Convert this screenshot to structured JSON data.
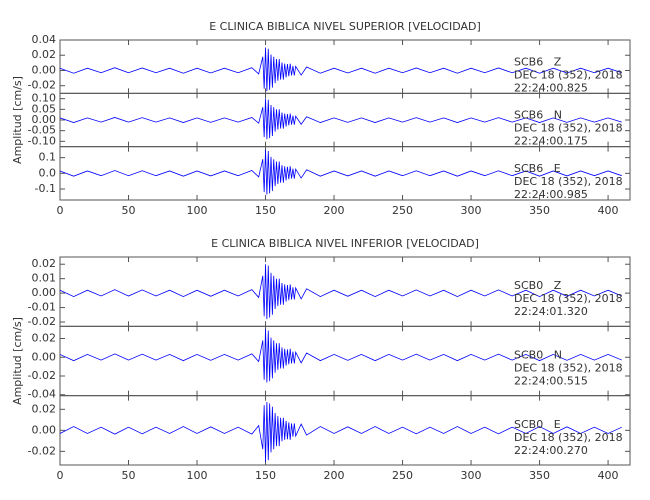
{
  "chart_data": [
    {
      "type": "line",
      "title": "E CLINICA BIBLICA NIVEL SUPERIOR [VELOCIDAD]",
      "ylabel": "Amplitud [cm/s]",
      "xlim": [
        0,
        416
      ],
      "xticks": [
        0,
        50,
        100,
        150,
        200,
        250,
        300,
        350,
        400
      ],
      "x": [
        0,
        10,
        20,
        30,
        40,
        50,
        60,
        70,
        80,
        90,
        100,
        110,
        120,
        130,
        140,
        145,
        148,
        149,
        150,
        151,
        152,
        153,
        154,
        155,
        156,
        157,
        158,
        159,
        160,
        161,
        162,
        163,
        164,
        165,
        166,
        167,
        168,
        169,
        170,
        171,
        172,
        176,
        180,
        190,
        200,
        210,
        220,
        230,
        240,
        250,
        260,
        270,
        280,
        290,
        300,
        310,
        320,
        330,
        340,
        350,
        360,
        370,
        380,
        390,
        400,
        410
      ],
      "panels": [
        {
          "ylim": [
            -0.03,
            0.04
          ],
          "yticks": [
            {
              "value": 0.04,
              "label": "0.04"
            },
            0.02,
            {
              "value": 0,
              "label": "0.00"
            },
            -0.02
          ],
          "labels": [
            "SCB6   Z",
            "DEC 18 (352), 2018",
            "22:24:00.825"
          ],
          "series": [
            {
              "color": "#0000ff",
              "values": [
                0.003,
                -0.0036,
                0.003,
                -0.003,
                0.0036,
                -0.003,
                0.0033,
                -0.003,
                0.003,
                -0.0036,
                0.003,
                -0.0033,
                0.003,
                -0.003,
                0.0036,
                -0.0045,
                0.018,
                -0.024,
                0.03,
                -0.027,
                0.0285,
                -0.0255,
                0.021,
                -0.0225,
                0.018,
                -0.0165,
                0.015,
                -0.0135,
                0.015,
                -0.012,
                0.0105,
                -0.012,
                0.009,
                -0.009,
                0.0084,
                -0.0075,
                0.009,
                -0.0066,
                0.006,
                -0.0066,
                0.0054,
                -0.006,
                0.0045,
                -0.0036,
                0.003,
                -0.0033,
                0.003,
                -0.0036,
                0.003,
                -0.003,
                0.0033,
                -0.003,
                0.003,
                -0.0036,
                0.003,
                -0.003,
                0.0033,
                -0.003,
                0.003,
                -0.0036,
                0.003,
                -0.0033,
                0.003,
                -0.003,
                0.003,
                -0.003
              ]
            }
          ]
        },
        {
          "ylim": [
            -0.125,
            0.125
          ],
          "yticks": [
            {
              "value": 0.1,
              "label": "0.10"
            },
            0.05,
            {
              "value": 0,
              "label": "0.00"
            },
            -0.05,
            {
              "value": -0.1,
              "label": "-0.10"
            }
          ],
          "labels": [
            "SCB6   N",
            "DEC 18 (352), 2018",
            "22:24:00.175"
          ],
          "series": [
            {
              "color": "#0000ff",
              "values": [
                0.01,
                -0.012,
                0.01,
                -0.01,
                0.012,
                -0.01,
                0.011,
                -0.01,
                0.01,
                -0.012,
                0.01,
                -0.011,
                0.01,
                -0.01,
                0.012,
                -0.015,
                0.06,
                -0.08,
                0.1,
                -0.09,
                0.095,
                -0.085,
                0.07,
                -0.075,
                0.06,
                -0.055,
                0.05,
                -0.045,
                0.05,
                -0.04,
                0.035,
                -0.04,
                0.03,
                -0.03,
                0.028,
                -0.025,
                0.03,
                -0.022,
                0.02,
                -0.022,
                0.018,
                -0.02,
                0.015,
                -0.012,
                0.01,
                -0.011,
                0.01,
                -0.012,
                0.01,
                -0.01,
                0.011,
                -0.01,
                0.01,
                -0.012,
                0.01,
                -0.01,
                0.011,
                -0.01,
                0.01,
                -0.012,
                0.01,
                -0.011,
                0.01,
                -0.01,
                0.01,
                -0.01
              ]
            }
          ]
        },
        {
          "ylim": [
            -0.17,
            0.17
          ],
          "yticks": [
            0.1,
            {
              "value": 0,
              "label": "0.0"
            },
            -0.1
          ],
          "labels": [
            "SCB6   E",
            "DEC 18 (352), 2018",
            "22:24:00.985"
          ],
          "series": [
            {
              "color": "#0000ff",
              "values": [
                0.015,
                -0.018,
                0.015,
                -0.015,
                0.018,
                -0.015,
                0.0165,
                -0.015,
                0.015,
                -0.018,
                0.015,
                -0.0165,
                0.015,
                -0.015,
                0.018,
                -0.0225,
                0.09,
                -0.12,
                0.15,
                -0.135,
                0.1425,
                -0.1275,
                0.105,
                -0.1125,
                0.09,
                -0.0825,
                0.075,
                -0.0675,
                0.075,
                -0.06,
                0.0525,
                -0.06,
                0.045,
                -0.045,
                0.042,
                -0.0375,
                0.045,
                -0.033,
                0.03,
                -0.033,
                0.027,
                -0.03,
                0.0225,
                -0.018,
                0.015,
                -0.0165,
                0.015,
                -0.018,
                0.015,
                -0.015,
                0.0165,
                -0.015,
                0.015,
                -0.018,
                0.015,
                -0.015,
                0.0165,
                -0.015,
                0.015,
                -0.018,
                0.015,
                -0.0165,
                0.015,
                -0.015,
                0.015,
                -0.015
              ]
            }
          ]
        }
      ]
    },
    {
      "type": "line",
      "title": "E CLINICA BIBLICA NIVEL INFERIOR [VELOCIDAD]",
      "ylabel": "Amplitud [cm/s]",
      "xlim": [
        0,
        416
      ],
      "xticks": [
        0,
        50,
        100,
        150,
        200,
        250,
        300,
        350,
        400
      ],
      "x": [
        0,
        10,
        20,
        30,
        40,
        50,
        60,
        70,
        80,
        90,
        100,
        110,
        120,
        130,
        140,
        145,
        148,
        149,
        150,
        151,
        152,
        153,
        154,
        155,
        156,
        157,
        158,
        159,
        160,
        161,
        162,
        163,
        164,
        165,
        166,
        167,
        168,
        169,
        170,
        171,
        172,
        176,
        180,
        190,
        200,
        210,
        220,
        230,
        240,
        250,
        260,
        270,
        280,
        290,
        300,
        310,
        320,
        330,
        340,
        350,
        360,
        370,
        380,
        390,
        400,
        410
      ],
      "panels": [
        {
          "ylim": [
            -0.023,
            0.025
          ],
          "yticks": [
            0.02,
            0.01,
            {
              "value": 0,
              "label": "0.00"
            },
            -0.01,
            -0.02
          ],
          "labels": [
            "SCB0   Z",
            "DEC 18 (352), 2018",
            "22:24:01.320"
          ],
          "series": [
            {
              "color": "#0000ff",
              "values": [
                0.002,
                -0.0024,
                0.002,
                -0.002,
                0.0024,
                -0.002,
                0.0022,
                -0.002,
                0.002,
                -0.0024,
                0.002,
                -0.0022,
                0.002,
                -0.002,
                0.0024,
                -0.003,
                0.012,
                -0.016,
                0.02,
                -0.018,
                0.019,
                -0.017,
                0.014,
                -0.015,
                0.012,
                -0.011,
                0.01,
                -0.009,
                0.01,
                -0.008,
                0.007,
                -0.008,
                0.006,
                -0.006,
                0.0056,
                -0.005,
                0.006,
                -0.0044,
                0.004,
                -0.0044,
                0.0036,
                -0.004,
                0.003,
                -0.0024,
                0.002,
                -0.0022,
                0.002,
                -0.0024,
                0.002,
                -0.002,
                0.0022,
                -0.002,
                0.002,
                -0.0024,
                0.002,
                -0.002,
                0.0022,
                -0.002,
                0.002,
                -0.0024,
                0.002,
                -0.0022,
                0.002,
                -0.002,
                0.002,
                -0.002
              ]
            }
          ]
        },
        {
          "ylim": [
            -0.041,
            0.033
          ],
          "yticks": [
            0.02,
            {
              "value": 0,
              "label": "0.00"
            },
            -0.02,
            -0.04
          ],
          "labels": [
            "SCB0   N",
            "DEC 18 (352), 2018",
            "22:24:00.515"
          ],
          "series": [
            {
              "color": "#0000ff",
              "values": [
                0.003,
                -0.0036,
                0.003,
                -0.003,
                0.0036,
                -0.003,
                0.0033,
                -0.003,
                0.003,
                -0.0036,
                0.003,
                -0.0033,
                0.003,
                -0.003,
                0.0036,
                -0.0045,
                0.018,
                -0.024,
                0.03,
                -0.027,
                0.0285,
                -0.0255,
                0.021,
                -0.0225,
                0.018,
                -0.0165,
                0.015,
                -0.0135,
                0.015,
                -0.012,
                0.0105,
                -0.012,
                0.009,
                -0.009,
                0.0084,
                -0.0075,
                0.009,
                -0.0066,
                0.006,
                -0.0066,
                0.0054,
                -0.006,
                0.0045,
                -0.0036,
                0.003,
                -0.0033,
                0.003,
                -0.0036,
                0.003,
                -0.003,
                0.0033,
                -0.003,
                0.003,
                -0.0036,
                0.003,
                -0.003,
                0.0033,
                -0.003,
                0.003,
                -0.0036,
                0.003,
                -0.0033,
                0.003,
                -0.003,
                0.003,
                -0.003
              ]
            }
          ]
        },
        {
          "ylim": [
            -0.033,
            0.033
          ],
          "yticks": [
            0.02,
            {
              "value": 0,
              "label": "0.00"
            },
            -0.02
          ],
          "labels": [
            "SCB0   E",
            "DEC 18 (352), 2018",
            "22:24:00.270"
          ],
          "series": [
            {
              "color": "#0000ff",
              "values": [
                -0.003,
                0.0036,
                -0.003,
                0.003,
                -0.0036,
                0.003,
                -0.0033,
                0.003,
                -0.003,
                0.0036,
                -0.003,
                0.0033,
                -0.003,
                0.003,
                -0.0036,
                0.0045,
                -0.018,
                0.024,
                -0.03,
                0.027,
                -0.0285,
                0.0255,
                -0.021,
                0.0225,
                -0.018,
                0.0165,
                -0.015,
                0.0135,
                -0.015,
                0.012,
                -0.0105,
                0.012,
                -0.009,
                0.009,
                -0.0084,
                0.0075,
                -0.009,
                0.0066,
                -0.006,
                0.0066,
                -0.0054,
                0.006,
                -0.0045,
                0.0036,
                -0.003,
                0.0033,
                -0.003,
                0.0036,
                -0.003,
                0.003,
                -0.0033,
                0.003,
                -0.003,
                0.0036,
                -0.003,
                0.003,
                -0.0033,
                0.003,
                -0.003,
                0.0036,
                -0.003,
                0.0033,
                -0.003,
                0.003,
                -0.003,
                0.003
              ]
            }
          ]
        }
      ]
    }
  ]
}
